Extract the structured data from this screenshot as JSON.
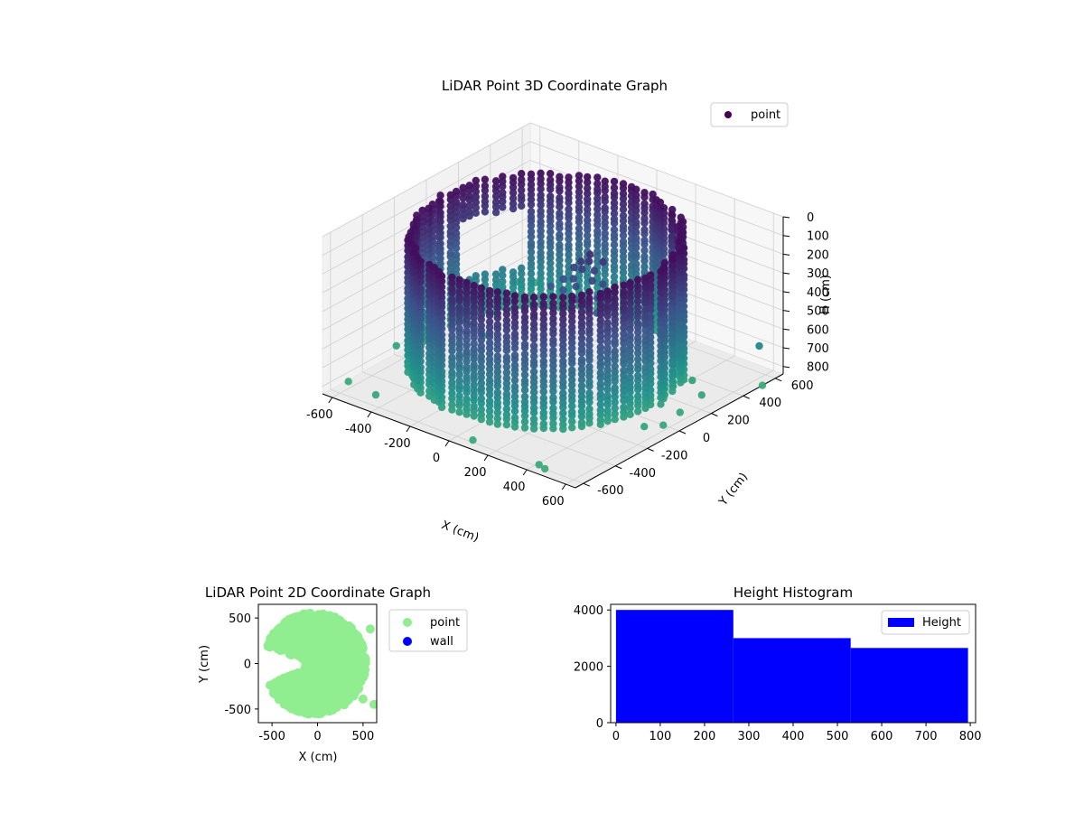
{
  "chart_data": [
    {
      "type": "scatter3d",
      "title": "LiDAR Point 3D Coordinate Graph",
      "xlabel": "X (cm)",
      "ylabel": "Y (cm)",
      "zlabel": "H (cm)",
      "xlim": [
        -650,
        650
      ],
      "ylim": [
        -650,
        650
      ],
      "zlim": [
        0,
        840
      ],
      "z_inverted": true,
      "xticks": [
        -600,
        -400,
        -200,
        0,
        200,
        400,
        600
      ],
      "yticks": [
        -600,
        -400,
        -200,
        0,
        200,
        400,
        600
      ],
      "zticks": [
        0,
        100,
        200,
        300,
        400,
        500,
        600,
        700,
        800
      ],
      "grid": true,
      "legend_position": "top-right",
      "colormap": "viridis",
      "colormap_stops": [
        "#440154",
        "#3b528b",
        "#21918c",
        "#5ec962",
        "#fde725"
      ],
      "series": [
        {
          "name": "point",
          "legend_color": "#440154",
          "wall": {
            "center": [
              -30,
              0
            ],
            "radius": 540,
            "radius_jitter": 15,
            "angle_step_deg": 4,
            "z_top": 60,
            "z_bottom": 760,
            "z_step": 28,
            "gap_angle_range_deg": [
              140,
              170
            ],
            "gap_z_range": [
              230,
              560
            ]
          },
          "inner_cluster": [
            {
              "x": 30,
              "y": 140,
              "z": 240
            },
            {
              "x": 60,
              "y": 110,
              "z": 255
            },
            {
              "x": 10,
              "y": 120,
              "z": 270
            },
            {
              "x": 90,
              "y": 150,
              "z": 270
            },
            {
              "x": 120,
              "y": 100,
              "z": 290
            },
            {
              "x": 40,
              "y": 80,
              "z": 300
            },
            {
              "x": 150,
              "y": 130,
              "z": 310
            },
            {
              "x": 70,
              "y": 60,
              "z": 320
            },
            {
              "x": 200,
              "y": 110,
              "z": 330
            },
            {
              "x": 180,
              "y": 60,
              "z": 340
            },
            {
              "x": 230,
              "y": 90,
              "z": 345
            },
            {
              "x": 260,
              "y": 60,
              "z": 355
            },
            {
              "x": 100,
              "y": 20,
              "z": 360
            },
            {
              "x": 300,
              "y": 80,
              "z": 360
            },
            {
              "x": 340,
              "y": 40,
              "z": 365
            },
            {
              "x": 20,
              "y": 40,
              "z": 350
            },
            {
              "x": -20,
              "y": 90,
              "z": 330
            },
            {
              "x": 60,
              "y": 160,
              "z": 200
            },
            {
              "x": 80,
              "y": 130,
              "z": 215
            },
            {
              "x": 140,
              "y": 40,
              "z": 380
            },
            {
              "x": 210,
              "y": 20,
              "z": 390
            },
            {
              "x": -60,
              "y": 60,
              "z": 370
            },
            {
              "x": 380,
              "y": 70,
              "z": 345
            },
            {
              "x": 110,
              "y": 180,
              "z": 230
            }
          ],
          "outliers": [
            {
              "x": -600,
              "y": 620,
              "z": 820
            },
            {
              "x": -640,
              "y": 550,
              "z": 800
            },
            {
              "x": -640,
              "y": -200,
              "z": 790
            },
            {
              "x": -640,
              "y": -500,
              "z": 840
            },
            {
              "x": -450,
              "y": -560,
              "z": 810
            },
            {
              "x": 90,
              "y": -610,
              "z": 820
            },
            {
              "x": 430,
              "y": -610,
              "z": 820
            },
            {
              "x": 460,
              "y": -610,
              "z": 830
            },
            {
              "x": 560,
              "y": 250,
              "z": 800
            },
            {
              "x": 580,
              "y": 90,
              "z": 810
            },
            {
              "x": 560,
              "y": -110,
              "z": 800
            },
            {
              "x": 600,
              "y": -40,
              "z": 810
            },
            {
              "x": 650,
              "y": 500,
              "z": 620
            },
            {
              "x": 650,
              "y": 520,
              "z": 840
            },
            {
              "x": 470,
              "y": 300,
              "z": 780
            },
            {
              "x": -400,
              "y": 50,
              "z": 760
            },
            {
              "x": -520,
              "y": 120,
              "z": 780
            }
          ]
        }
      ]
    },
    {
      "type": "scatter",
      "title": "LiDAR Point 2D Coordinate Graph",
      "xlabel": "X (cm)",
      "ylabel": "Y (cm)",
      "xlim": [
        -650,
        650
      ],
      "ylim": [
        -650,
        650
      ],
      "xticks": [
        -500,
        0,
        500
      ],
      "yticks": [
        -500,
        0,
        500
      ],
      "legend_position": "outside-right",
      "series": [
        {
          "name": "point",
          "color": "#90ee90",
          "blob": {
            "center": [
              -30,
              0
            ],
            "radius": 560,
            "gap_angle_range_deg": [
              160,
              205
            ],
            "inner_radius_in_gap": 60
          },
          "extra_points": [
            {
              "x": 580,
              "y": 380
            },
            {
              "x": 620,
              "y": -450
            },
            {
              "x": 500,
              "y": -390
            }
          ]
        },
        {
          "name": "wall",
          "color": "#0000ff",
          "points": []
        }
      ]
    },
    {
      "type": "histogram",
      "title": "Height Histogram",
      "xlim": [
        -12,
        812
      ],
      "ylim": [
        0,
        4200
      ],
      "xticks": [
        0,
        100,
        200,
        300,
        400,
        500,
        600,
        700,
        800
      ],
      "yticks": [
        0,
        2000,
        4000
      ],
      "legend_position": "top-right",
      "series": [
        {
          "name": "Height",
          "color": "#0000ff",
          "bins": [
            {
              "x0": 0,
              "x1": 265,
              "count": 4000
            },
            {
              "x0": 265,
              "x1": 530,
              "count": 3000
            },
            {
              "x0": 530,
              "x1": 795,
              "count": 2650
            }
          ]
        }
      ]
    }
  ]
}
